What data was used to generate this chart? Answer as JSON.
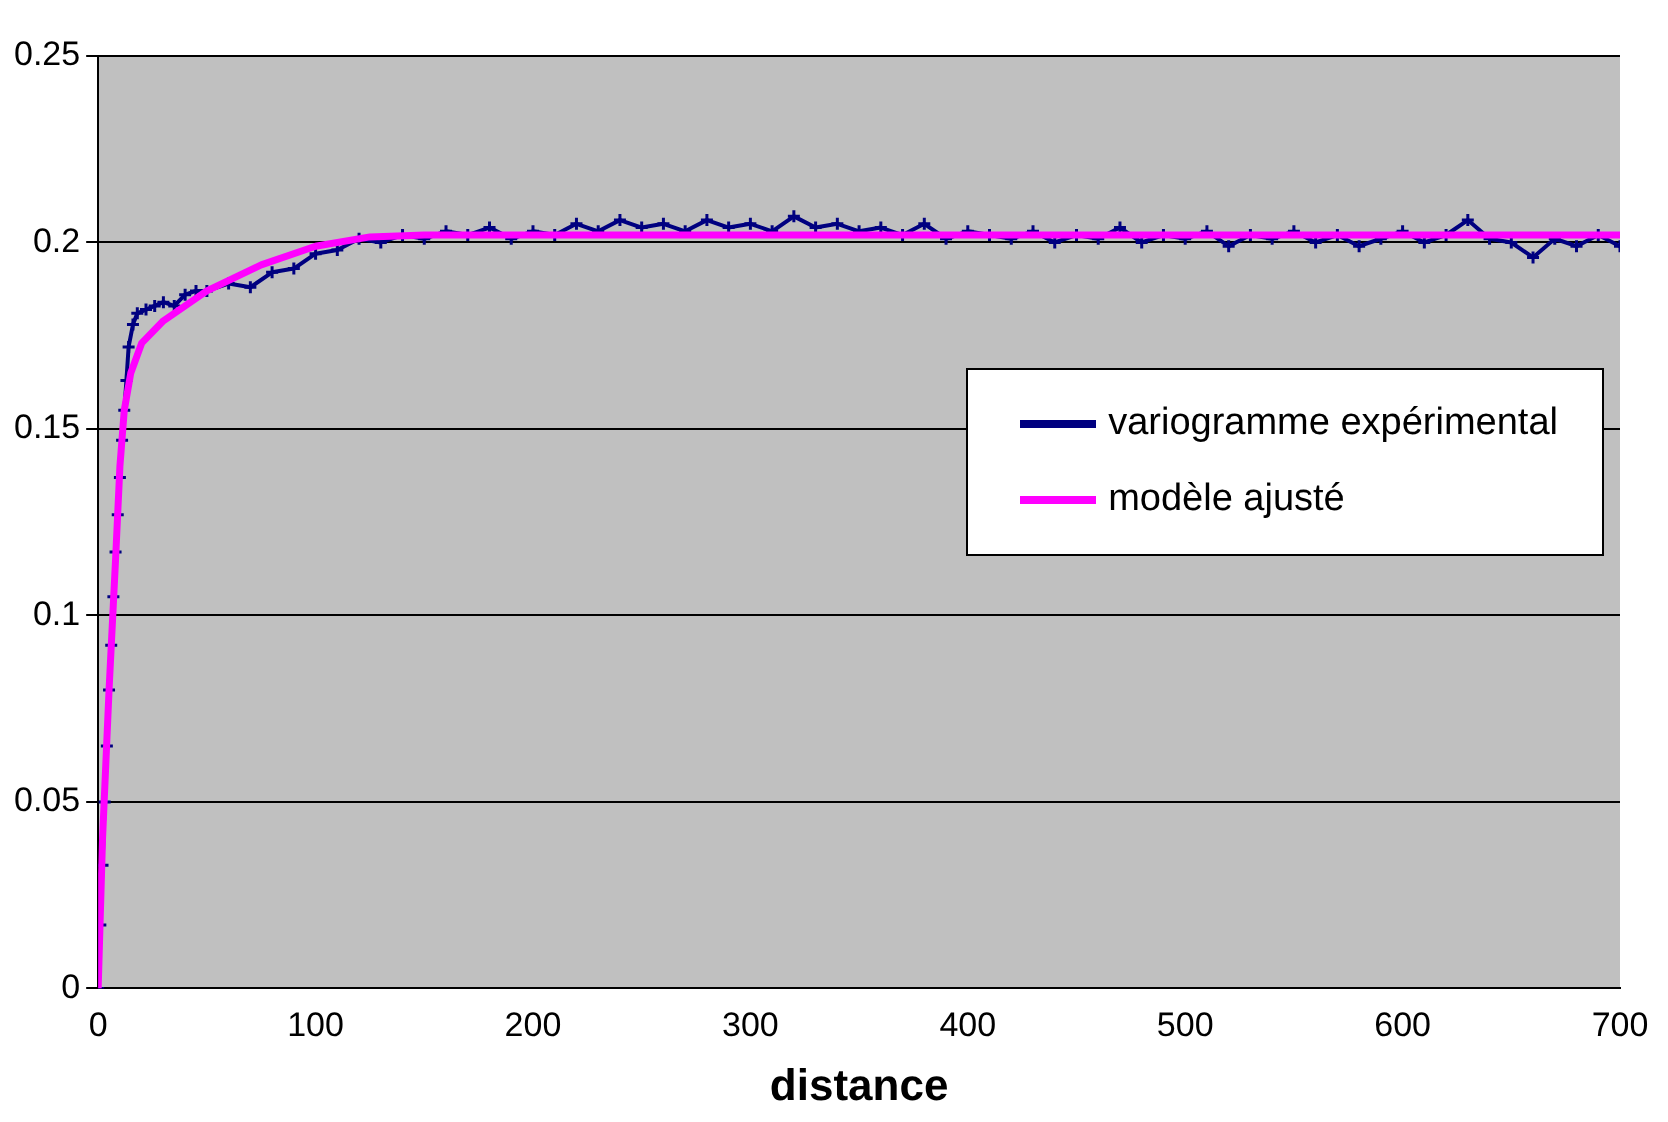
{
  "chart_data": {
    "type": "line",
    "xlabel": "distance",
    "xlim": [
      0,
      700
    ],
    "xticks": [
      0,
      100,
      200,
      300,
      400,
      500,
      600,
      700
    ],
    "ylim": [
      0,
      0.25
    ],
    "yticks": [
      0,
      0.05,
      0.1,
      0.15,
      0.2,
      0.25
    ],
    "grid": "y",
    "legend": "right",
    "series": [
      {
        "name": "variogramme expérimental",
        "color": "#000080",
        "marker": "cross",
        "x": [
          0,
          1,
          2,
          3,
          4,
          5,
          6,
          7,
          8,
          9,
          10,
          11,
          12,
          13,
          14,
          16,
          18,
          22,
          26,
          30,
          35,
          40,
          45,
          50,
          60,
          70,
          80,
          90,
          100,
          110,
          120,
          130,
          140,
          150,
          160,
          170,
          180,
          190,
          200,
          210,
          220,
          230,
          240,
          250,
          260,
          270,
          280,
          290,
          300,
          310,
          320,
          330,
          340,
          350,
          360,
          370,
          380,
          390,
          400,
          410,
          420,
          430,
          440,
          450,
          460,
          470,
          480,
          490,
          500,
          510,
          520,
          530,
          540,
          550,
          560,
          570,
          580,
          590,
          600,
          610,
          620,
          630,
          640,
          650,
          660,
          670,
          680,
          690,
          700
        ],
        "values": [
          0,
          0.017,
          0.033,
          0.05,
          0.065,
          0.08,
          0.092,
          0.105,
          0.117,
          0.127,
          0.137,
          0.147,
          0.155,
          0.163,
          0.172,
          0.178,
          0.181,
          0.182,
          0.183,
          0.184,
          0.183,
          0.186,
          0.187,
          0.187,
          0.189,
          0.188,
          0.192,
          0.193,
          0.197,
          0.198,
          0.201,
          0.2,
          0.202,
          0.201,
          0.203,
          0.202,
          0.204,
          0.201,
          0.203,
          0.202,
          0.205,
          0.203,
          0.206,
          0.204,
          0.205,
          0.203,
          0.206,
          0.204,
          0.205,
          0.203,
          0.207,
          0.204,
          0.205,
          0.203,
          0.204,
          0.202,
          0.205,
          0.201,
          0.203,
          0.202,
          0.201,
          0.203,
          0.2,
          0.202,
          0.201,
          0.204,
          0.2,
          0.202,
          0.201,
          0.203,
          0.199,
          0.202,
          0.201,
          0.203,
          0.2,
          0.202,
          0.199,
          0.201,
          0.203,
          0.2,
          0.202,
          0.206,
          0.201,
          0.2,
          0.196,
          0.201,
          0.199,
          0.202,
          0.199
        ]
      },
      {
        "name": "modèle ajusté",
        "color": "#ff00ff",
        "marker": "none",
        "x": [
          0,
          2,
          5,
          8,
          10,
          12,
          15,
          20,
          30,
          40,
          50,
          75,
          100,
          125,
          150,
          200,
          300,
          400,
          500,
          600,
          700
        ],
        "values": [
          0,
          0.04,
          0.08,
          0.115,
          0.14,
          0.155,
          0.165,
          0.173,
          0.179,
          0.183,
          0.187,
          0.194,
          0.199,
          0.2015,
          0.202,
          0.202,
          0.202,
          0.202,
          0.202,
          0.202,
          0.202
        ]
      }
    ]
  }
}
